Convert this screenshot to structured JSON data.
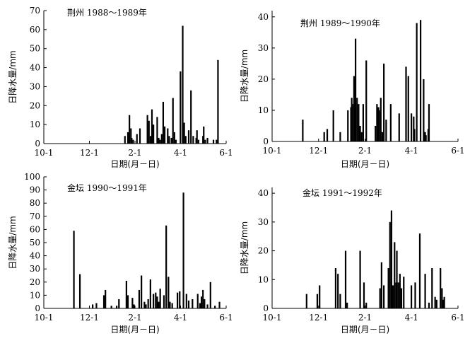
{
  "chart_data": [
    {
      "type": "bar",
      "title": "荆州 1988～1989年",
      "xlabel": "日期(月－日)",
      "ylabel": "日降水量/mm",
      "x_ticks": [
        "10-1",
        "12-1",
        "2-1",
        "4-1",
        "6-1"
      ],
      "y_ticks": [
        "0",
        "10",
        "20",
        "30",
        "40",
        "50",
        "60",
        "70"
      ],
      "ylim": [
        0,
        70
      ],
      "x_unit": "days since 10-1",
      "xlim": [
        0,
        243
      ],
      "x": [
        108,
        112,
        114,
        116,
        117,
        119,
        124,
        128,
        138,
        140,
        142,
        144,
        146,
        151,
        153,
        155,
        157,
        159,
        161,
        165,
        167,
        170,
        172,
        174,
        176,
        182,
        185,
        187,
        189,
        193,
        196,
        199,
        203,
        204,
        206,
        212,
        213,
        215,
        218,
        226,
        230,
        232
      ],
      "values": [
        4,
        6,
        15,
        8,
        3,
        2,
        5,
        8,
        15,
        12,
        4,
        18,
        10,
        14,
        3,
        2,
        5,
        22,
        9,
        8,
        4,
        3,
        24,
        6,
        2,
        38,
        62,
        11,
        4,
        7,
        28,
        4,
        3,
        7,
        2,
        4,
        9,
        2,
        3,
        2,
        2,
        44
      ]
    },
    {
      "type": "bar",
      "title": "荆州 1989～1990年",
      "xlabel": "日期(月－日)",
      "ylabel": "日降水量/mm",
      "x_ticks": [
        "10-1",
        "12-1",
        "2-1",
        "4-1",
        "6-1"
      ],
      "y_ticks": [
        "0",
        "10",
        "20",
        "30",
        "40"
      ],
      "ylim": [
        0,
        42
      ],
      "x_unit": "days since 10-1",
      "xlim": [
        0,
        243
      ],
      "x": [
        40,
        68,
        72,
        80,
        89,
        99,
        103,
        104,
        105,
        107,
        109,
        111,
        113,
        115,
        117,
        119,
        123,
        135,
        137,
        139,
        140,
        142,
        144,
        146,
        149,
        155,
        166,
        175,
        178,
        182,
        185,
        186,
        189,
        194,
        198,
        200,
        201,
        204,
        205
      ],
      "values": [
        7,
        3,
        4,
        10,
        3,
        10,
        11,
        14,
        12,
        21,
        33,
        14,
        12,
        5,
        3,
        12,
        26,
        5,
        12,
        11,
        10,
        14,
        3,
        25,
        7,
        12,
        9,
        24,
        21,
        9,
        8,
        4,
        38,
        39,
        20,
        3,
        2,
        4,
        12
      ]
    },
    {
      "type": "bar",
      "title": "金坛 1990～1991年",
      "xlabel": "日期(月－日)",
      "ylabel": "日降水量/mm",
      "x_ticks": [
        "10-1",
        "12-1",
        "2-1",
        "4-1",
        "6-1"
      ],
      "y_ticks": [
        "0",
        "10",
        "20",
        "30",
        "40",
        "50",
        "60",
        "70",
        "80",
        "90",
        "100"
      ],
      "ylim": [
        0,
        100
      ],
      "x_unit": "days since 10-1",
      "xlim": [
        0,
        243
      ],
      "x": [
        40,
        48,
        65,
        70,
        80,
        82,
        90,
        97,
        100,
        110,
        112,
        118,
        120,
        127,
        130,
        134,
        136,
        139,
        142,
        146,
        149,
        151,
        153,
        155,
        160,
        163,
        166,
        168,
        171,
        178,
        181,
        186,
        190,
        193,
        198,
        205,
        208,
        210,
        212,
        214,
        218,
        222,
        228,
        234
      ],
      "values": [
        59,
        26,
        3,
        4,
        10,
        14,
        2,
        2,
        7,
        21,
        10,
        8,
        3,
        14,
        25,
        5,
        3,
        7,
        22,
        11,
        12,
        9,
        5,
        15,
        10,
        63,
        24,
        5,
        4,
        12,
        13,
        88,
        11,
        6,
        7,
        11,
        4,
        9,
        14,
        7,
        3,
        20,
        2,
        5
      ]
    },
    {
      "type": "bar",
      "title": "金坛 1991～1992年",
      "xlabel": "日期(月－日)",
      "ylabel": "日降水量/mm",
      "x_ticks": [
        "10-1",
        "12-1",
        "2-1",
        "4-1",
        "6-1"
      ],
      "y_ticks": [
        "0",
        "10",
        "20",
        "30",
        "40"
      ],
      "ylim": [
        0,
        42
      ],
      "x_unit": "days since 10-1",
      "xlim": [
        0,
        243
      ],
      "x": [
        45,
        59,
        62,
        83,
        86,
        89,
        96,
        98,
        115,
        120,
        123,
        141,
        143,
        146,
        152,
        154,
        156,
        158,
        160,
        162,
        163,
        165,
        167,
        169,
        172,
        182,
        187,
        193,
        200,
        205,
        209,
        213,
        215,
        220,
        222,
        223,
        225
      ],
      "values": [
        5,
        5,
        8,
        14,
        12,
        5,
        20,
        2,
        20,
        9,
        2,
        7,
        16,
        8,
        14,
        30,
        34,
        8,
        23,
        9,
        20,
        9,
        12,
        7,
        11,
        8,
        9,
        26,
        12,
        2,
        14,
        4,
        3,
        14,
        7,
        3,
        4
      ]
    }
  ]
}
